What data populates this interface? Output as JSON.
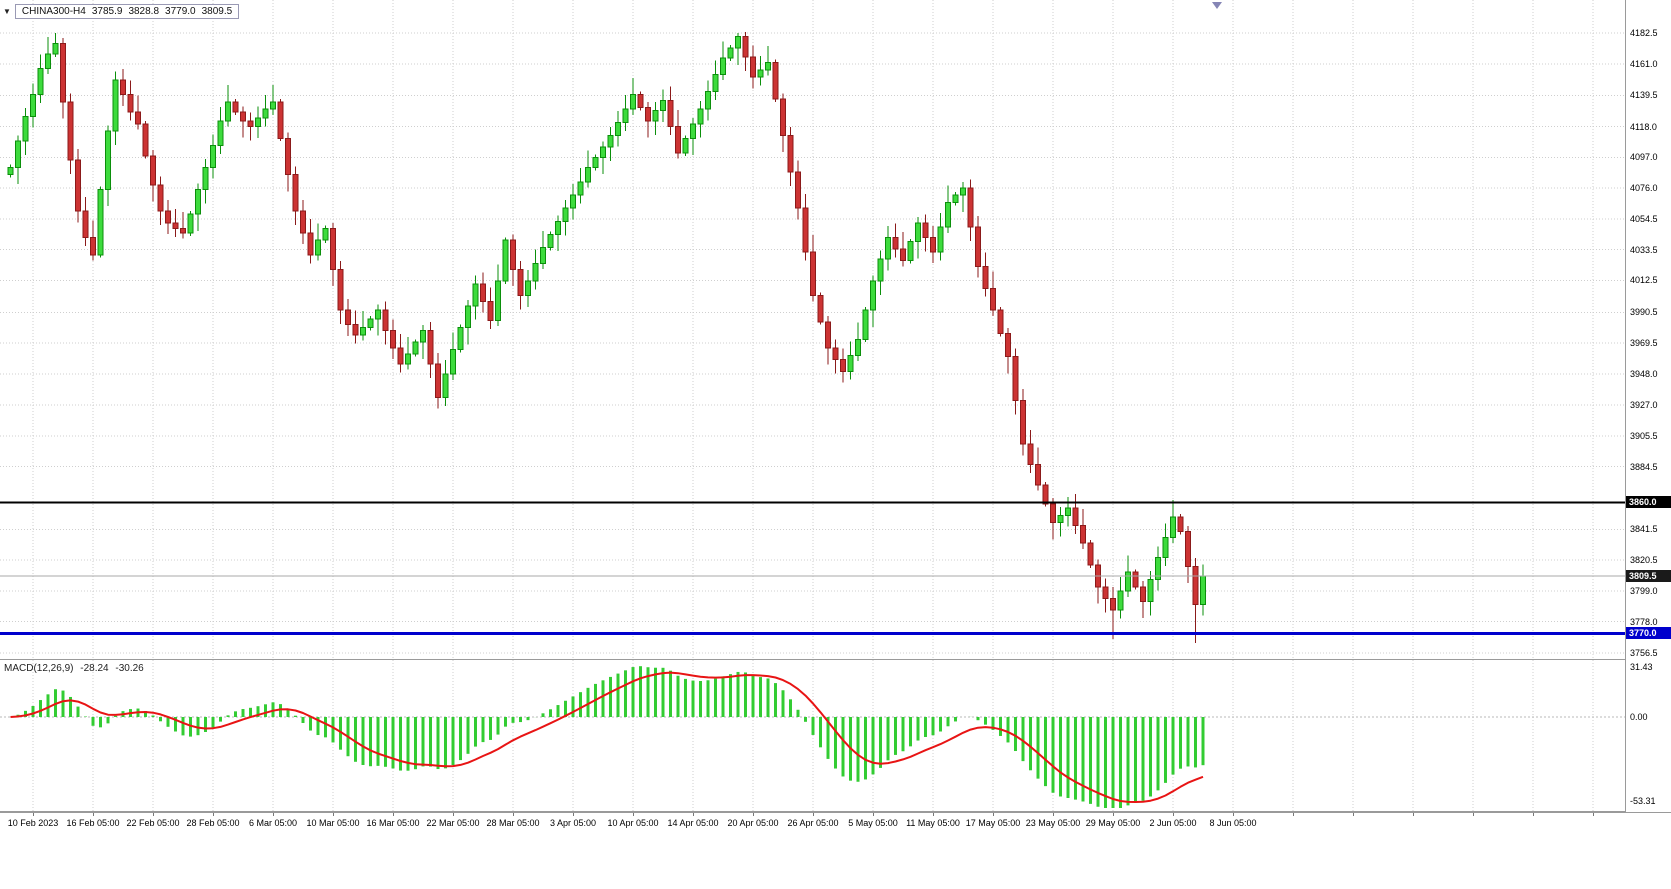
{
  "symbol_bar": {
    "dropdown_icon": "▼",
    "symbol": "CHINA300-H4",
    "open": "3785.9",
    "high": "3828.8",
    "low": "3779.0",
    "close": "3809.5"
  },
  "time_axis": {
    "labels": [
      "10 Feb 2023",
      "16 Feb 05:00",
      "22 Feb 05:00",
      "28 Feb 05:00",
      "6 Mar 05:00",
      "10 Mar 05:00",
      "16 Mar 05:00",
      "22 Mar 05:00",
      "28 Mar 05:00",
      "3 Apr 05:00",
      "10 Apr 05:00",
      "14 Apr 05:00",
      "20 Apr 05:00",
      "26 Apr 05:00",
      "5 May 05:00",
      "11 May 05:00",
      "17 May 05:00",
      "23 May 05:00",
      "29 May 05:00",
      "2 Jun 05:00",
      "8 Jun 05:00"
    ]
  },
  "chart_data": [
    {
      "type": "candlestick",
      "title": "CHINA300-H4",
      "timeframe": "H4",
      "y_axis_labels": [
        "4182.5",
        "4161.0",
        "4139.5",
        "4118.0",
        "4097.0",
        "4076.0",
        "4054.5",
        "4033.5",
        "4012.5",
        "3990.5",
        "3969.5",
        "3948.0",
        "3927.0",
        "3905.5",
        "3884.5",
        "3841.5",
        "3820.5",
        "3799.0",
        "3778.0",
        "3756.5"
      ],
      "y_range": [
        3752.4,
        4205.0
      ],
      "first_open": 4085,
      "closes": [
        4090,
        4108,
        4125,
        4140,
        4158,
        4168,
        4175,
        4135,
        4095,
        4060,
        4042,
        4030,
        4075,
        4115,
        4150,
        4140,
        4128,
        4120,
        4098,
        4078,
        4060,
        4052,
        4048,
        4045,
        4058,
        4075,
        4090,
        4105,
        4122,
        4135,
        4128,
        4122,
        4118,
        4124,
        4130,
        4135,
        4110,
        4085,
        4060,
        4045,
        4030,
        4040,
        4048,
        4020,
        3992,
        3982,
        3975,
        3980,
        3986,
        3992,
        3978,
        3966,
        3955,
        3962,
        3970,
        3978,
        3955,
        3932,
        3948,
        3965,
        3980,
        3995,
        4010,
        3998,
        3985,
        4012,
        4040,
        4020,
        4002,
        4012,
        4024,
        4035,
        4044,
        4053,
        4062,
        4071,
        4080,
        4090,
        4097,
        4104,
        4112,
        4121,
        4130,
        4140,
        4131,
        4122,
        4129,
        4136,
        4118,
        4100,
        4110,
        4120,
        4130,
        4142,
        4154,
        4165,
        4172,
        4180,
        4166,
        4152,
        4157,
        4162,
        4137,
        4112,
        4087,
        4062,
        4032,
        4002,
        3984,
        3966,
        3958,
        3950,
        3961,
        3972,
        3992,
        4012,
        4027,
        4042,
        4034,
        4026,
        4039,
        4052,
        4042,
        4032,
        4049,
        4066,
        4071,
        4076,
        4049,
        4022,
        4007,
        3992,
        3976,
        3960,
        3930,
        3900,
        3886,
        3872,
        3859,
        3846,
        3851,
        3856,
        3844,
        3832,
        3817,
        3802,
        3794,
        3786,
        3799,
        3812,
        3802,
        3792,
        3807,
        3822,
        3836,
        3850,
        3840,
        3816,
        3790,
        3809.5
      ],
      "highs_override": [
        [
          6,
          4182.5
        ],
        [
          97,
          4182.5
        ]
      ],
      "lows_override": [
        [
          147,
          3766
        ],
        [
          158,
          3763.5
        ]
      ],
      "lines": [
        {
          "name": "resistance-line-3860",
          "price": 3860.0,
          "color": "#000000",
          "width": 2,
          "label": "3860.0",
          "label_bg": "#000000"
        },
        {
          "name": "bid-price-line",
          "price": 3809.5,
          "color": "#a8a8a8",
          "width": 1,
          "label": "3809.5",
          "label_bg": "#1a1a1a"
        },
        {
          "name": "support-line-3770",
          "price": 3770.0,
          "color": "#0000cd",
          "width": 3,
          "label": "3770.0",
          "label_bg": "#0000cd"
        }
      ],
      "colors": {
        "up": "#3ddb3d",
        "up_border": "#0b8f0b",
        "down": "#cc3333",
        "down_border": "#8b1a1a",
        "grid": "#cfcfcf",
        "background": "#ffffff"
      }
    },
    {
      "type": "macd",
      "label": "MACD(12,26,9)",
      "main_value": "-28.24",
      "signal_value": "-30.26",
      "params": [
        12,
        26,
        9
      ],
      "axis_labels": {
        "max": "31.43",
        "zero": "0.00",
        "min": "-53.31"
      },
      "histogram_color": "#33cc33",
      "signal_color": "#e81414"
    }
  ]
}
